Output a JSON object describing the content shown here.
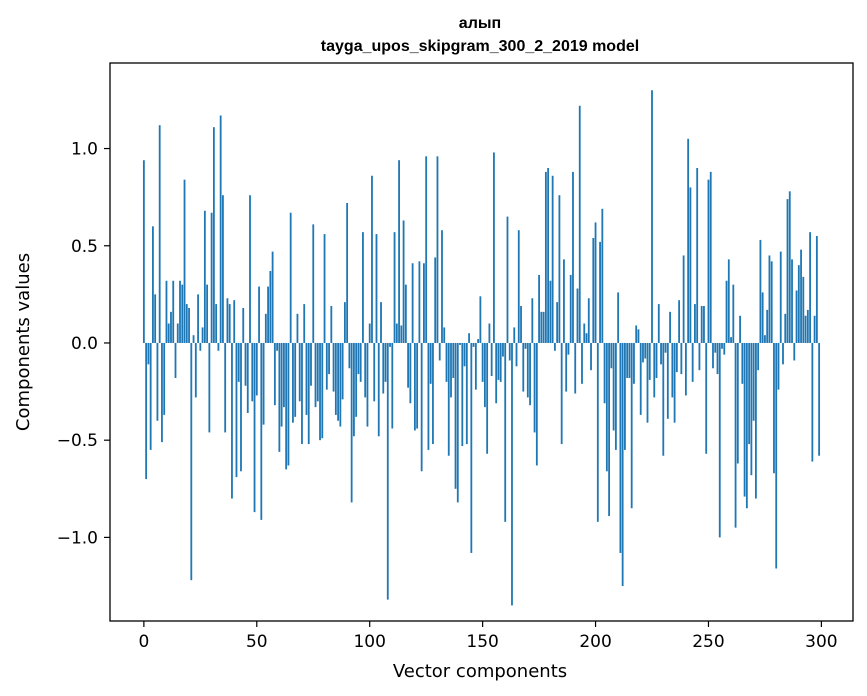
{
  "chart_data": {
    "type": "bar",
    "title": "алып",
    "subtitle": "tayga_upos_skipgram_300_2_2019 model",
    "xlabel": "Vector components",
    "ylabel": "Components values",
    "xlim": [
      -15,
      314
    ],
    "ylim": [
      -1.43,
      1.44
    ],
    "x_ticks": [
      0,
      50,
      100,
      150,
      200,
      250,
      300
    ],
    "x_tick_labels": [
      "0",
      "50",
      "100",
      "150",
      "200",
      "250",
      "300"
    ],
    "y_ticks": [
      -1.0,
      -0.5,
      0.0,
      0.5,
      1.0
    ],
    "y_tick_labels": [
      "−1.0",
      "−0.5",
      "0.0",
      "0.5",
      "1.0"
    ],
    "bar_color": "#1f77b4",
    "grid": false,
    "series": [
      {
        "name": "алып",
        "values": [
          0.94,
          -0.7,
          -0.11,
          -0.55,
          0.6,
          0.25,
          -0.4,
          1.12,
          -0.51,
          -0.37,
          0.32,
          0.1,
          0.16,
          0.32,
          -0.18,
          0.1,
          0.32,
          0.3,
          0.84,
          0.2,
          0.18,
          -1.22,
          0.04,
          -0.28,
          0.25,
          -0.04,
          0.08,
          0.68,
          0.3,
          -0.46,
          0.67,
          1.11,
          0.2,
          -0.04,
          1.17,
          0.76,
          -0.46,
          0.23,
          0.2,
          -0.8,
          0.22,
          -0.69,
          -0.2,
          -0.66,
          0.18,
          -0.22,
          -0.36,
          0.76,
          -0.3,
          -0.87,
          -0.27,
          0.29,
          -0.91,
          -0.42,
          0.15,
          0.29,
          0.37,
          0.47,
          -0.32,
          -0.04,
          -0.56,
          -0.43,
          -0.33,
          -0.65,
          -0.63,
          0.67,
          -0.41,
          -0.38,
          0.15,
          -0.3,
          -0.52,
          0.2,
          -0.37,
          -0.52,
          -0.22,
          0.61,
          -0.33,
          -0.3,
          -0.5,
          -0.49,
          0.56,
          -0.24,
          -0.16,
          0.19,
          -0.25,
          -0.37,
          -0.4,
          -0.43,
          -0.29,
          0.21,
          0.72,
          -0.13,
          -0.82,
          -0.48,
          -0.38,
          -0.16,
          -0.2,
          0.57,
          -0.28,
          -0.43,
          0.1,
          0.86,
          -0.3,
          0.56,
          -0.48,
          0.21,
          -0.26,
          -0.2,
          -1.32,
          -0.02,
          -0.44,
          0.57,
          0.1,
          0.94,
          0.09,
          0.63,
          0.3,
          -0.23,
          -0.31,
          0.41,
          -0.45,
          -0.44,
          0.42,
          -0.66,
          0.41,
          0.96,
          -0.55,
          -0.21,
          -0.52,
          0.44,
          0.96,
          -0.09,
          0.58,
          0.08,
          -0.2,
          -0.58,
          -0.28,
          -0.18,
          -0.75,
          -0.82,
          -0.01,
          -0.53,
          -0.12,
          -0.52,
          0.05,
          -1.08,
          -0.02,
          -0.24,
          0.02,
          0.24,
          -0.2,
          -0.33,
          -0.57,
          0.1,
          -0.17,
          0.98,
          -0.31,
          -0.19,
          -0.2,
          -0.07,
          -0.92,
          0.65,
          -0.09,
          -1.35,
          0.08,
          -0.12,
          0.58,
          0.19,
          -0.25,
          -0.03,
          -0.28,
          -0.32,
          0.23,
          -0.46,
          -0.63,
          0.35,
          0.16,
          0.16,
          0.88,
          0.9,
          0.32,
          0.86,
          -0.04,
          0.21,
          0.76,
          -0.52,
          0.43,
          -0.25,
          -0.06,
          0.35,
          0.88,
          -0.26,
          0.28,
          1.22,
          -0.21,
          0.1,
          0.05,
          0.23,
          -0.14,
          0.54,
          0.62,
          -0.92,
          0.52,
          0.69,
          -0.31,
          -0.66,
          -0.89,
          -0.13,
          -0.45,
          -0.55,
          0.26,
          -1.08,
          -1.25,
          -0.55,
          -0.18,
          -0.18,
          -0.85,
          -0.21,
          0.09,
          0.07,
          -0.37,
          -0.1,
          -0.08,
          -0.41,
          -0.19,
          1.3,
          -0.28,
          -0.18,
          0.2,
          -0.11,
          -0.58,
          -0.05,
          -0.39,
          0.16,
          -0.28,
          -0.41,
          -0.15,
          0.22,
          -0.16,
          0.45,
          -0.27,
          1.05,
          0.8,
          -0.2,
          0.2,
          0.9,
          -0.14,
          0.19,
          0.19,
          -0.57,
          0.84,
          0.88,
          -0.13,
          -0.05,
          -0.16,
          -1.0,
          -0.03,
          -0.06,
          0.32,
          0.43,
          0.03,
          0.3,
          -0.95,
          -0.62,
          0.14,
          -0.21,
          -0.79,
          -0.85,
          -0.52,
          -0.68,
          -0.4,
          -0.8,
          -0.14,
          0.53,
          0.26,
          0.04,
          0.17,
          0.45,
          0.42,
          -0.67,
          -1.16,
          -0.24,
          0.47,
          -0.11,
          0.15,
          0.74,
          0.78,
          0.43,
          -0.09,
          0.27,
          0.4,
          0.48,
          0.34,
          0.14,
          0.17,
          0.57,
          -0.61,
          0.14,
          0.55,
          -0.58
        ]
      }
    ]
  }
}
